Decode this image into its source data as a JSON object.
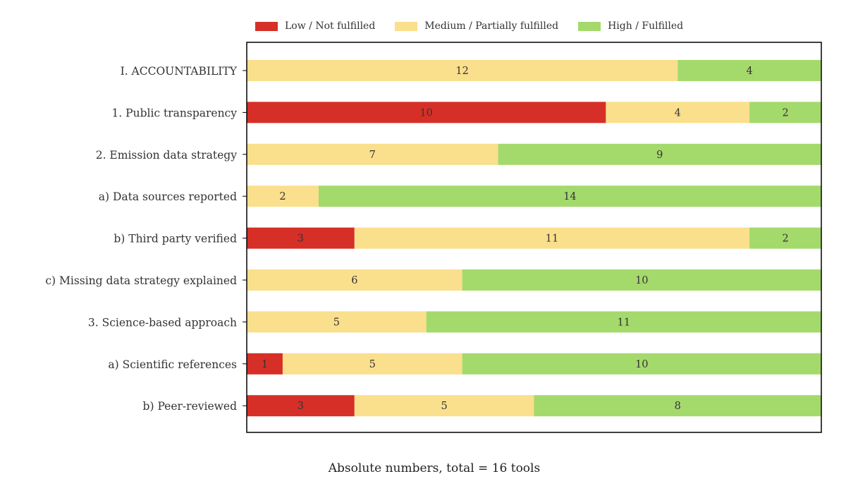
{
  "chart_data": {
    "type": "bar",
    "orientation": "horizontal",
    "stacked": true,
    "categories": [
      "I. ACCOUNTABILITY",
      "1. Public transparency",
      "2. Emission data strategy",
      "a) Data sources reported",
      "b) Third party verified",
      "c) Missing data strategy explained",
      "3. Science-based approach",
      "a) Scientific references",
      "b) Peer-reviewed"
    ],
    "series": [
      {
        "name": "Low / Not fulfilled",
        "color": "#d62f27",
        "values": [
          0,
          10,
          0,
          0,
          3,
          0,
          0,
          1,
          3
        ]
      },
      {
        "name": "Medium / Partially fulfilled",
        "color": "#fadf8c",
        "values": [
          12,
          4,
          7,
          2,
          11,
          6,
          5,
          5,
          5
        ]
      },
      {
        "name": "High / Fulfilled",
        "color": "#a4d96c",
        "values": [
          4,
          2,
          9,
          14,
          2,
          10,
          11,
          10,
          8
        ]
      }
    ],
    "xlabel": "Absolute numbers, total = 16 tools",
    "xlim": [
      0,
      16
    ],
    "legend_position": "top",
    "grid": false
  }
}
